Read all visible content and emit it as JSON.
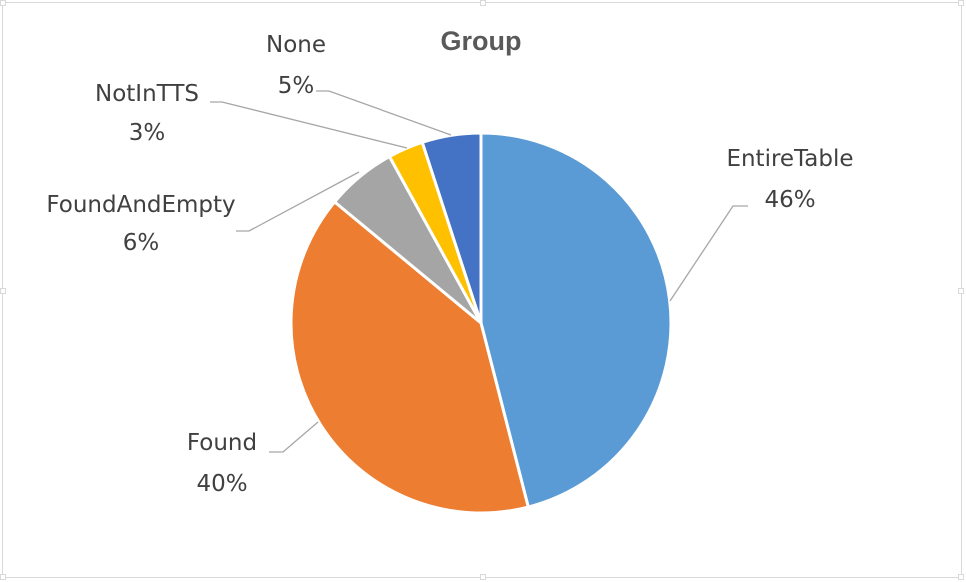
{
  "chart_data": {
    "type": "pie",
    "title": "Group",
    "slices": [
      {
        "label": "EntireTable",
        "value": 46,
        "value_label": "46%",
        "color": "#5b9bd5"
      },
      {
        "label": "Found",
        "value": 40,
        "value_label": "40%",
        "color": "#ed7d31"
      },
      {
        "label": "FoundAndEmpty",
        "value": 6,
        "value_label": "6%",
        "color": "#a5a5a5"
      },
      {
        "label": "NotInTTS",
        "value": 3,
        "value_label": "3%",
        "color": "#ffc000"
      },
      {
        "label": "None",
        "value": 5,
        "value_label": "5%",
        "color": "#4472c4"
      }
    ],
    "start_angle": "12 o'clock",
    "direction": "clockwise",
    "legend": "none",
    "data_labels": "category name and percentage with leader lines"
  }
}
